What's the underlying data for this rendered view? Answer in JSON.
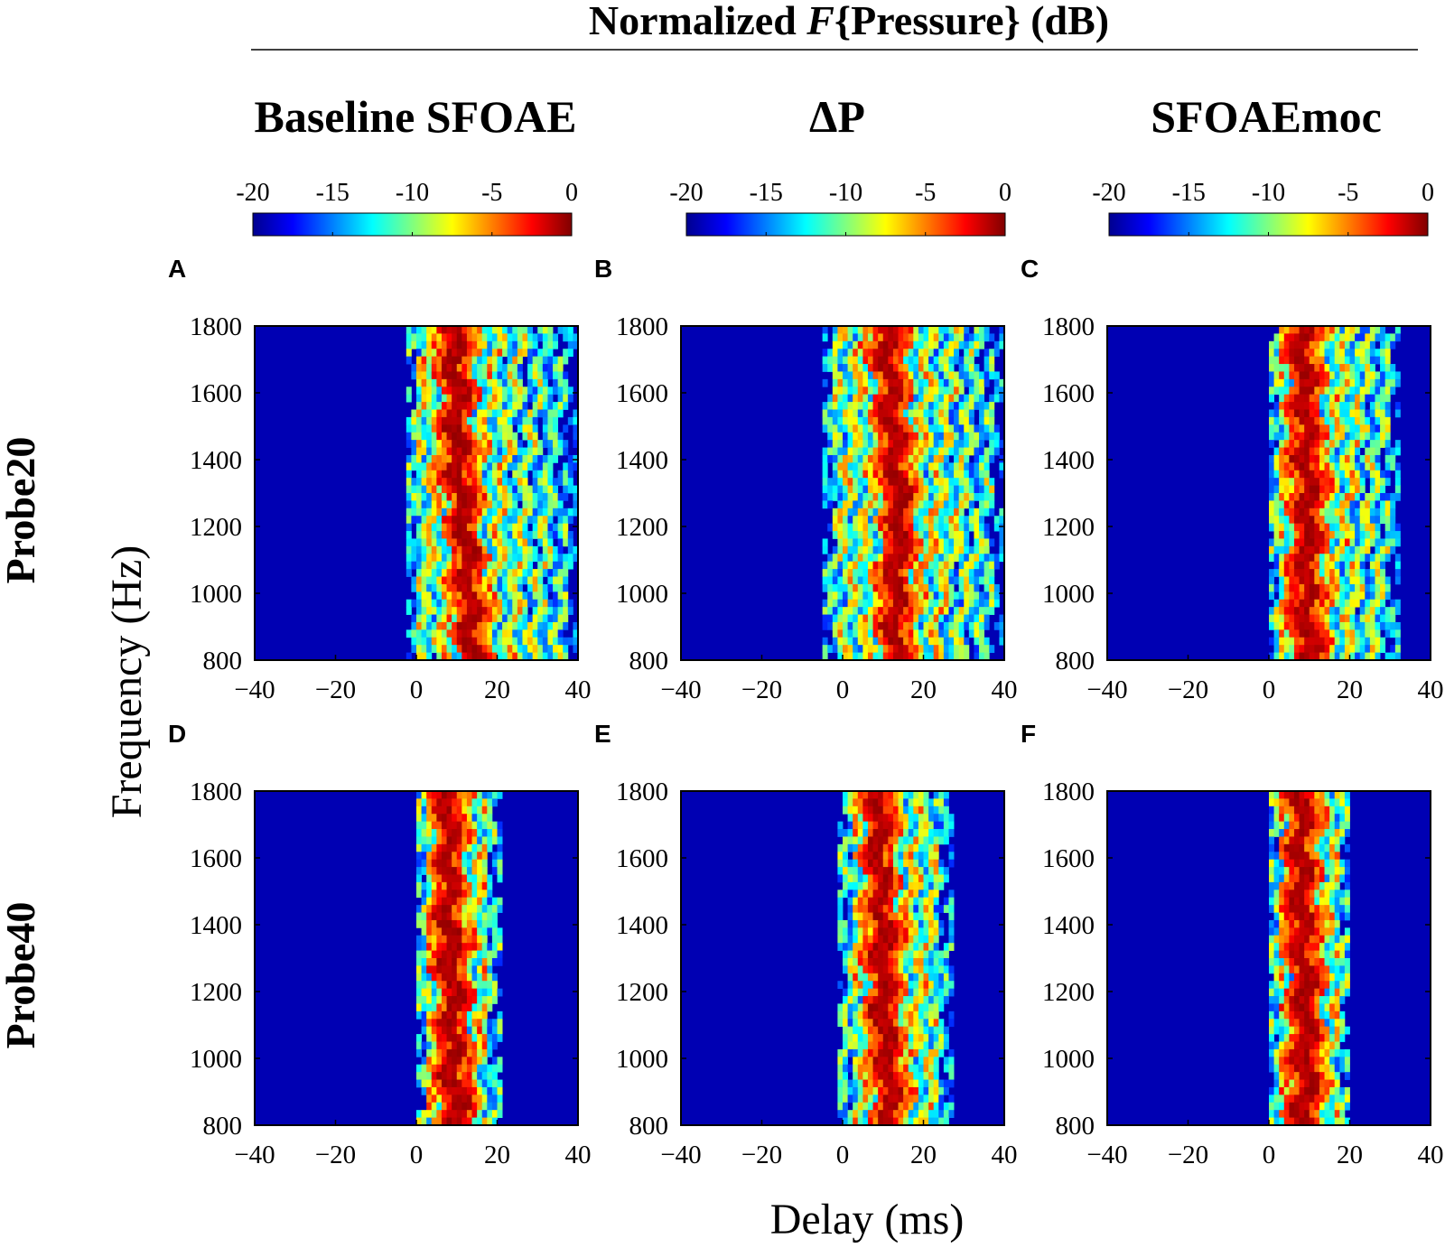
{
  "chart_data": {
    "type": "heatmap",
    "title_parts": {
      "prefix": "Normalized ",
      "italic": "F",
      "suffix": "{Pressure} (dB)"
    },
    "column_titles": [
      "Baseline SFOAE",
      "ΔP",
      "SFOAEmoc"
    ],
    "row_labels": [
      "Probe20",
      "Probe40"
    ],
    "xlabel": "Delay (ms)",
    "ylabel": "Frequency (Hz)",
    "xlim": [
      -40,
      40
    ],
    "ylim": [
      800,
      1800
    ],
    "x_ticks": [
      -40,
      -20,
      0,
      20,
      40
    ],
    "x_tick_labels": [
      "−40",
      "−20",
      "0",
      "20",
      "40"
    ],
    "y_ticks": [
      800,
      1000,
      1200,
      1400,
      1600,
      1800
    ],
    "colorbar": {
      "min": -20,
      "max": 0,
      "ticks": [
        -20,
        -15,
        -10,
        -5,
        0
      ],
      "tick_labels": [
        "-20",
        "-15",
        "-10",
        "-5",
        "0"
      ],
      "unit": "dB"
    },
    "panels": [
      {
        "letter": "A",
        "row": "Probe20",
        "column": "Baseline SFOAE",
        "peak_delay_ms": [
          14,
          13,
          12,
          10,
          10,
          9
        ],
        "activity_range_ms": [
          -3,
          40
        ],
        "max_db": 0,
        "floor_db": -20
      },
      {
        "letter": "B",
        "row": "Probe20",
        "column": "ΔP",
        "peak_delay_ms": [
          13,
          13,
          14,
          13,
          12,
          10
        ],
        "activity_range_ms": [
          -5,
          40
        ],
        "max_db": 0,
        "floor_db": -20
      },
      {
        "letter": "C",
        "row": "Probe20",
        "column": "SFOAEmoc",
        "peak_delay_ms": [
          10,
          9,
          10,
          9,
          9,
          8
        ],
        "activity_range_ms": [
          0,
          33
        ],
        "max_db": 0,
        "floor_db": -20
      },
      {
        "letter": "D",
        "row": "Probe40",
        "column": "Baseline SFOAE",
        "peak_delay_ms": [
          10,
          9,
          9,
          8,
          8,
          8
        ],
        "activity_range_ms": [
          0,
          21
        ],
        "max_db": 0,
        "floor_db": -20
      },
      {
        "letter": "E",
        "row": "Probe40",
        "column": "ΔP",
        "peak_delay_ms": [
          12,
          11,
          10,
          10,
          9,
          9
        ],
        "activity_range_ms": [
          -1,
          27
        ],
        "max_db": 0,
        "floor_db": -20
      },
      {
        "letter": "F",
        "row": "Probe40",
        "column": "SFOAEmoc",
        "peak_delay_ms": [
          9,
          9,
          9,
          8,
          8,
          8
        ],
        "activity_range_ms": [
          0,
          20
        ],
        "max_db": 0,
        "floor_db": -20
      }
    ]
  }
}
